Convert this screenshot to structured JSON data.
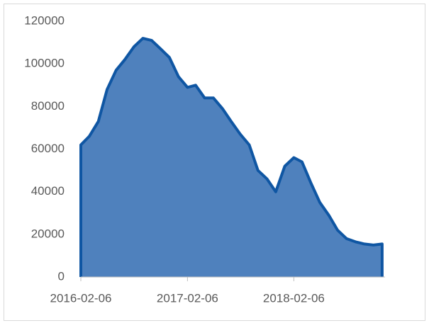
{
  "chart_data": {
    "type": "area",
    "x": [
      "2016-02-06",
      "2016-03-06",
      "2016-04-06",
      "2016-05-06",
      "2016-06-06",
      "2016-07-06",
      "2016-08-06",
      "2016-09-06",
      "2016-10-06",
      "2016-11-06",
      "2016-12-06",
      "2017-01-06",
      "2017-02-06",
      "2017-03-06",
      "2017-04-06",
      "2017-05-06",
      "2017-06-06",
      "2017-07-06",
      "2017-08-06",
      "2017-09-06",
      "2017-10-06",
      "2017-11-06",
      "2017-12-06",
      "2018-01-06",
      "2018-02-06",
      "2018-03-06",
      "2018-04-06",
      "2018-05-06",
      "2018-06-06",
      "2018-07-06",
      "2018-08-06",
      "2018-09-06",
      "2018-10-06",
      "2018-11-06",
      "2018-12-06"
    ],
    "values": [
      62000,
      66000,
      73000,
      88000,
      97000,
      102000,
      108000,
      112000,
      111000,
      107000,
      103000,
      94000,
      89000,
      90000,
      84000,
      84000,
      79000,
      73000,
      67000,
      62000,
      50000,
      46000,
      40000,
      52000,
      56000,
      54000,
      44000,
      35000,
      29000,
      22000,
      18000,
      16500,
      15500,
      15000,
      15500
    ],
    "color": "#4f81bd",
    "line_color": "#0f56a3",
    "xlim": [
      "2016-02-06",
      "2018-12-16"
    ],
    "xticks": [
      "2016-02-06",
      "2017-02-06",
      "2018-02-06"
    ],
    "ylim": [
      0,
      120000
    ],
    "yticks": [
      0,
      20000,
      40000,
      60000,
      80000,
      100000,
      120000
    ]
  }
}
